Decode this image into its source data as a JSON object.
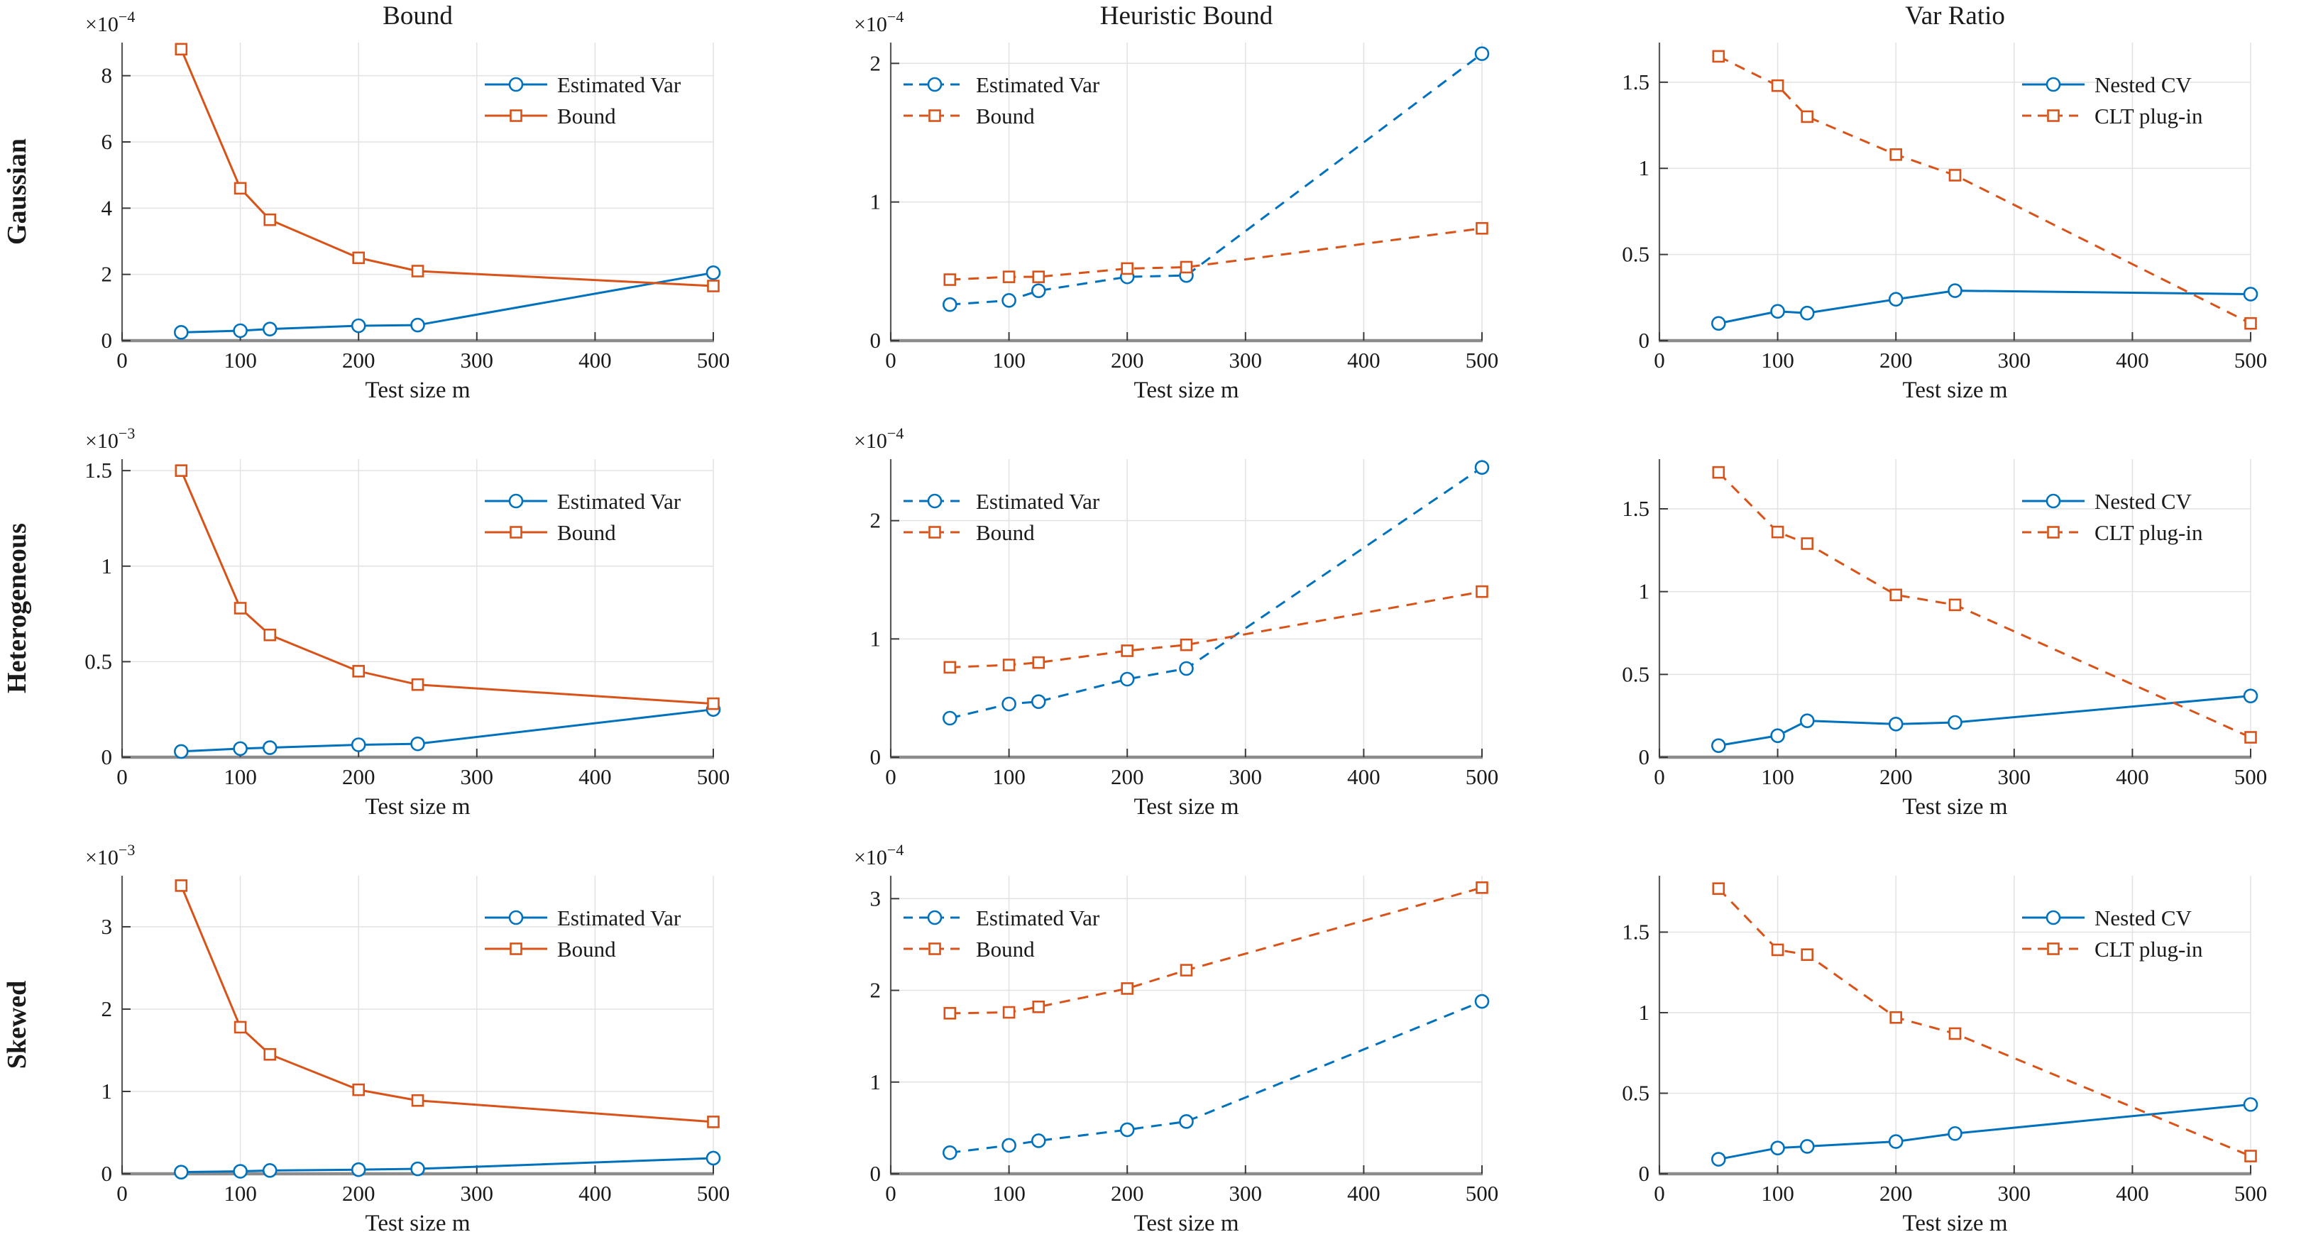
{
  "colors": {
    "blue": "#0072BD",
    "orange": "#D95319",
    "grid": "#E2E2E2",
    "spine_left": "#5A5A5A",
    "spine_bottom": "#8C8C8C",
    "tick": "#3A3A3A",
    "text": "#1A1A1A",
    "marker_face": "#FFFFFF"
  },
  "chart_data": [
    {
      "type": "line",
      "row_label": "Gaussian",
      "title": "Bound",
      "xlabel": "Test size m",
      "y_exponent_base": "×10",
      "y_exponent_power": "−4",
      "x": [
        50,
        100,
        125,
        200,
        250,
        500
      ],
      "xlim": [
        0,
        500
      ],
      "xticks": [
        0,
        100,
        200,
        300,
        400,
        500
      ],
      "ylim": [
        0,
        9
      ],
      "yticks": [
        0,
        2,
        4,
        6,
        8
      ],
      "ytick_labels": [
        "0",
        "2",
        "4",
        "6",
        "8"
      ],
      "grid": true,
      "legend_position": "top-right",
      "series": [
        {
          "name": "Estimated Var",
          "color": "blue",
          "marker": "circle",
          "dashed": false,
          "values": [
            0.25,
            0.3,
            0.35,
            0.45,
            0.47,
            2.05
          ]
        },
        {
          "name": "Bound",
          "color": "orange",
          "marker": "square",
          "dashed": false,
          "values": [
            8.8,
            4.6,
            3.65,
            2.5,
            2.1,
            1.65
          ]
        }
      ]
    },
    {
      "type": "line",
      "row_label": "",
      "title": "Heuristic Bound",
      "xlabel": "Test size m",
      "y_exponent_base": "×10",
      "y_exponent_power": "−4",
      "x": [
        50,
        100,
        125,
        200,
        250,
        500
      ],
      "xlim": [
        0,
        500
      ],
      "xticks": [
        0,
        100,
        200,
        300,
        400,
        500
      ],
      "ylim": [
        0,
        2.15
      ],
      "yticks": [
        0,
        1,
        2
      ],
      "ytick_labels": [
        "0",
        "1",
        "2"
      ],
      "grid": true,
      "legend_position": "top-left",
      "series": [
        {
          "name": "Estimated Var",
          "color": "blue",
          "marker": "circle",
          "dashed": true,
          "values": [
            0.26,
            0.29,
            0.36,
            0.46,
            0.47,
            2.07
          ]
        },
        {
          "name": "Bound",
          "color": "orange",
          "marker": "square",
          "dashed": true,
          "values": [
            0.44,
            0.46,
            0.46,
            0.52,
            0.53,
            0.81
          ]
        }
      ]
    },
    {
      "type": "line",
      "row_label": "",
      "title": "Var Ratio",
      "xlabel": "Test size m",
      "y_exponent_base": "",
      "y_exponent_power": "",
      "x": [
        50,
        100,
        125,
        200,
        250,
        500
      ],
      "xlim": [
        0,
        500
      ],
      "xticks": [
        0,
        100,
        200,
        300,
        400,
        500
      ],
      "ylim": [
        0,
        1.73
      ],
      "yticks": [
        0,
        0.5,
        1,
        1.5
      ],
      "ytick_labels": [
        "0",
        "0.5",
        "1",
        "1.5"
      ],
      "grid": true,
      "legend_position": "top-right",
      "series": [
        {
          "name": "Nested CV",
          "color": "blue",
          "marker": "circle",
          "dashed": false,
          "values": [
            0.1,
            0.17,
            0.16,
            0.24,
            0.29,
            0.27
          ]
        },
        {
          "name": "CLT plug-in",
          "color": "orange",
          "marker": "square",
          "dashed": true,
          "values": [
            1.65,
            1.48,
            1.3,
            1.08,
            0.96,
            0.1
          ]
        }
      ]
    },
    {
      "type": "line",
      "row_label": "Heterogeneous",
      "title": "",
      "xlabel": "Test size m",
      "y_exponent_base": "×10",
      "y_exponent_power": "−3",
      "x": [
        50,
        100,
        125,
        200,
        250,
        500
      ],
      "xlim": [
        0,
        500
      ],
      "xticks": [
        0,
        100,
        200,
        300,
        400,
        500
      ],
      "ylim": [
        0,
        1.56
      ],
      "yticks": [
        0,
        0.5,
        1,
        1.5
      ],
      "ytick_labels": [
        "0",
        "0.5",
        "1",
        "1.5"
      ],
      "grid": true,
      "legend_position": "top-right",
      "series": [
        {
          "name": "Estimated Var",
          "color": "blue",
          "marker": "circle",
          "dashed": false,
          "values": [
            0.03,
            0.045,
            0.05,
            0.065,
            0.07,
            0.25
          ]
        },
        {
          "name": "Bound",
          "color": "orange",
          "marker": "square",
          "dashed": false,
          "values": [
            1.5,
            0.78,
            0.64,
            0.45,
            0.38,
            0.28
          ]
        }
      ]
    },
    {
      "type": "line",
      "row_label": "",
      "title": "",
      "xlabel": "Test size m",
      "y_exponent_base": "×10",
      "y_exponent_power": "−4",
      "x": [
        50,
        100,
        125,
        200,
        250,
        500
      ],
      "xlim": [
        0,
        500
      ],
      "xticks": [
        0,
        100,
        200,
        300,
        400,
        500
      ],
      "ylim": [
        0,
        2.52
      ],
      "yticks": [
        0,
        1,
        2
      ],
      "ytick_labels": [
        "0",
        "1",
        "2"
      ],
      "grid": true,
      "legend_position": "top-left",
      "series": [
        {
          "name": "Estimated Var",
          "color": "blue",
          "marker": "circle",
          "dashed": true,
          "values": [
            0.33,
            0.45,
            0.47,
            0.66,
            0.75,
            2.45
          ]
        },
        {
          "name": "Bound",
          "color": "orange",
          "marker": "square",
          "dashed": true,
          "values": [
            0.76,
            0.78,
            0.8,
            0.9,
            0.95,
            1.4
          ]
        }
      ]
    },
    {
      "type": "line",
      "row_label": "",
      "title": "",
      "xlabel": "Test size m",
      "y_exponent_base": "",
      "y_exponent_power": "",
      "x": [
        50,
        100,
        125,
        200,
        250,
        500
      ],
      "xlim": [
        0,
        500
      ],
      "xticks": [
        0,
        100,
        200,
        300,
        400,
        500
      ],
      "ylim": [
        0,
        1.8
      ],
      "yticks": [
        0,
        0.5,
        1,
        1.5
      ],
      "ytick_labels": [
        "0",
        "0.5",
        "1",
        "1.5"
      ],
      "grid": true,
      "legend_position": "top-right",
      "series": [
        {
          "name": "Nested CV",
          "color": "blue",
          "marker": "circle",
          "dashed": false,
          "values": [
            0.07,
            0.13,
            0.22,
            0.2,
            0.21,
            0.37
          ]
        },
        {
          "name": "CLT plug-in",
          "color": "orange",
          "marker": "square",
          "dashed": true,
          "values": [
            1.72,
            1.36,
            1.29,
            0.98,
            0.92,
            0.12
          ]
        }
      ]
    },
    {
      "type": "line",
      "row_label": "Skewed",
      "title": "",
      "xlabel": "Test size m",
      "y_exponent_base": "×10",
      "y_exponent_power": "−3",
      "x": [
        50,
        100,
        125,
        200,
        250,
        500
      ],
      "xlim": [
        0,
        500
      ],
      "xticks": [
        0,
        100,
        200,
        300,
        400,
        500
      ],
      "ylim": [
        0,
        3.62
      ],
      "yticks": [
        0,
        1,
        2,
        3
      ],
      "ytick_labels": [
        "0",
        "1",
        "2",
        "3"
      ],
      "grid": true,
      "legend_position": "top-right",
      "series": [
        {
          "name": "Estimated Var",
          "color": "blue",
          "marker": "circle",
          "dashed": false,
          "values": [
            0.02,
            0.03,
            0.04,
            0.05,
            0.06,
            0.19
          ]
        },
        {
          "name": "Bound",
          "color": "orange",
          "marker": "square",
          "dashed": false,
          "values": [
            3.5,
            1.78,
            1.45,
            1.02,
            0.89,
            0.63
          ]
        }
      ]
    },
    {
      "type": "line",
      "row_label": "",
      "title": "",
      "xlabel": "Test size m",
      "y_exponent_base": "×10",
      "y_exponent_power": "−4",
      "x": [
        50,
        100,
        125,
        200,
        250,
        500
      ],
      "xlim": [
        0,
        500
      ],
      "xticks": [
        0,
        100,
        200,
        300,
        400,
        500
      ],
      "ylim": [
        0,
        3.25
      ],
      "yticks": [
        0,
        1,
        2,
        3
      ],
      "ytick_labels": [
        "0",
        "1",
        "2",
        "3"
      ],
      "grid": true,
      "legend_position": "top-left",
      "series": [
        {
          "name": "Estimated Var",
          "color": "blue",
          "marker": "circle",
          "dashed": true,
          "values": [
            0.23,
            0.31,
            0.36,
            0.48,
            0.57,
            1.88
          ]
        },
        {
          "name": "Bound",
          "color": "orange",
          "marker": "square",
          "dashed": true,
          "values": [
            1.75,
            1.76,
            1.82,
            2.02,
            2.22,
            3.12
          ]
        }
      ]
    },
    {
      "type": "line",
      "row_label": "",
      "title": "",
      "xlabel": "Test size m",
      "y_exponent_base": "",
      "y_exponent_power": "",
      "x": [
        50,
        100,
        125,
        200,
        250,
        500
      ],
      "xlim": [
        0,
        500
      ],
      "xticks": [
        0,
        100,
        200,
        300,
        400,
        500
      ],
      "ylim": [
        0,
        1.85
      ],
      "yticks": [
        0,
        0.5,
        1,
        1.5
      ],
      "ytick_labels": [
        "0",
        "0.5",
        "1",
        "1.5"
      ],
      "grid": true,
      "legend_position": "top-right",
      "series": [
        {
          "name": "Nested CV",
          "color": "blue",
          "marker": "circle",
          "dashed": false,
          "values": [
            0.09,
            0.16,
            0.17,
            0.2,
            0.25,
            0.43
          ]
        },
        {
          "name": "CLT plug-in",
          "color": "orange",
          "marker": "square",
          "dashed": true,
          "values": [
            1.77,
            1.39,
            1.36,
            0.97,
            0.87,
            0.11
          ]
        }
      ]
    }
  ]
}
